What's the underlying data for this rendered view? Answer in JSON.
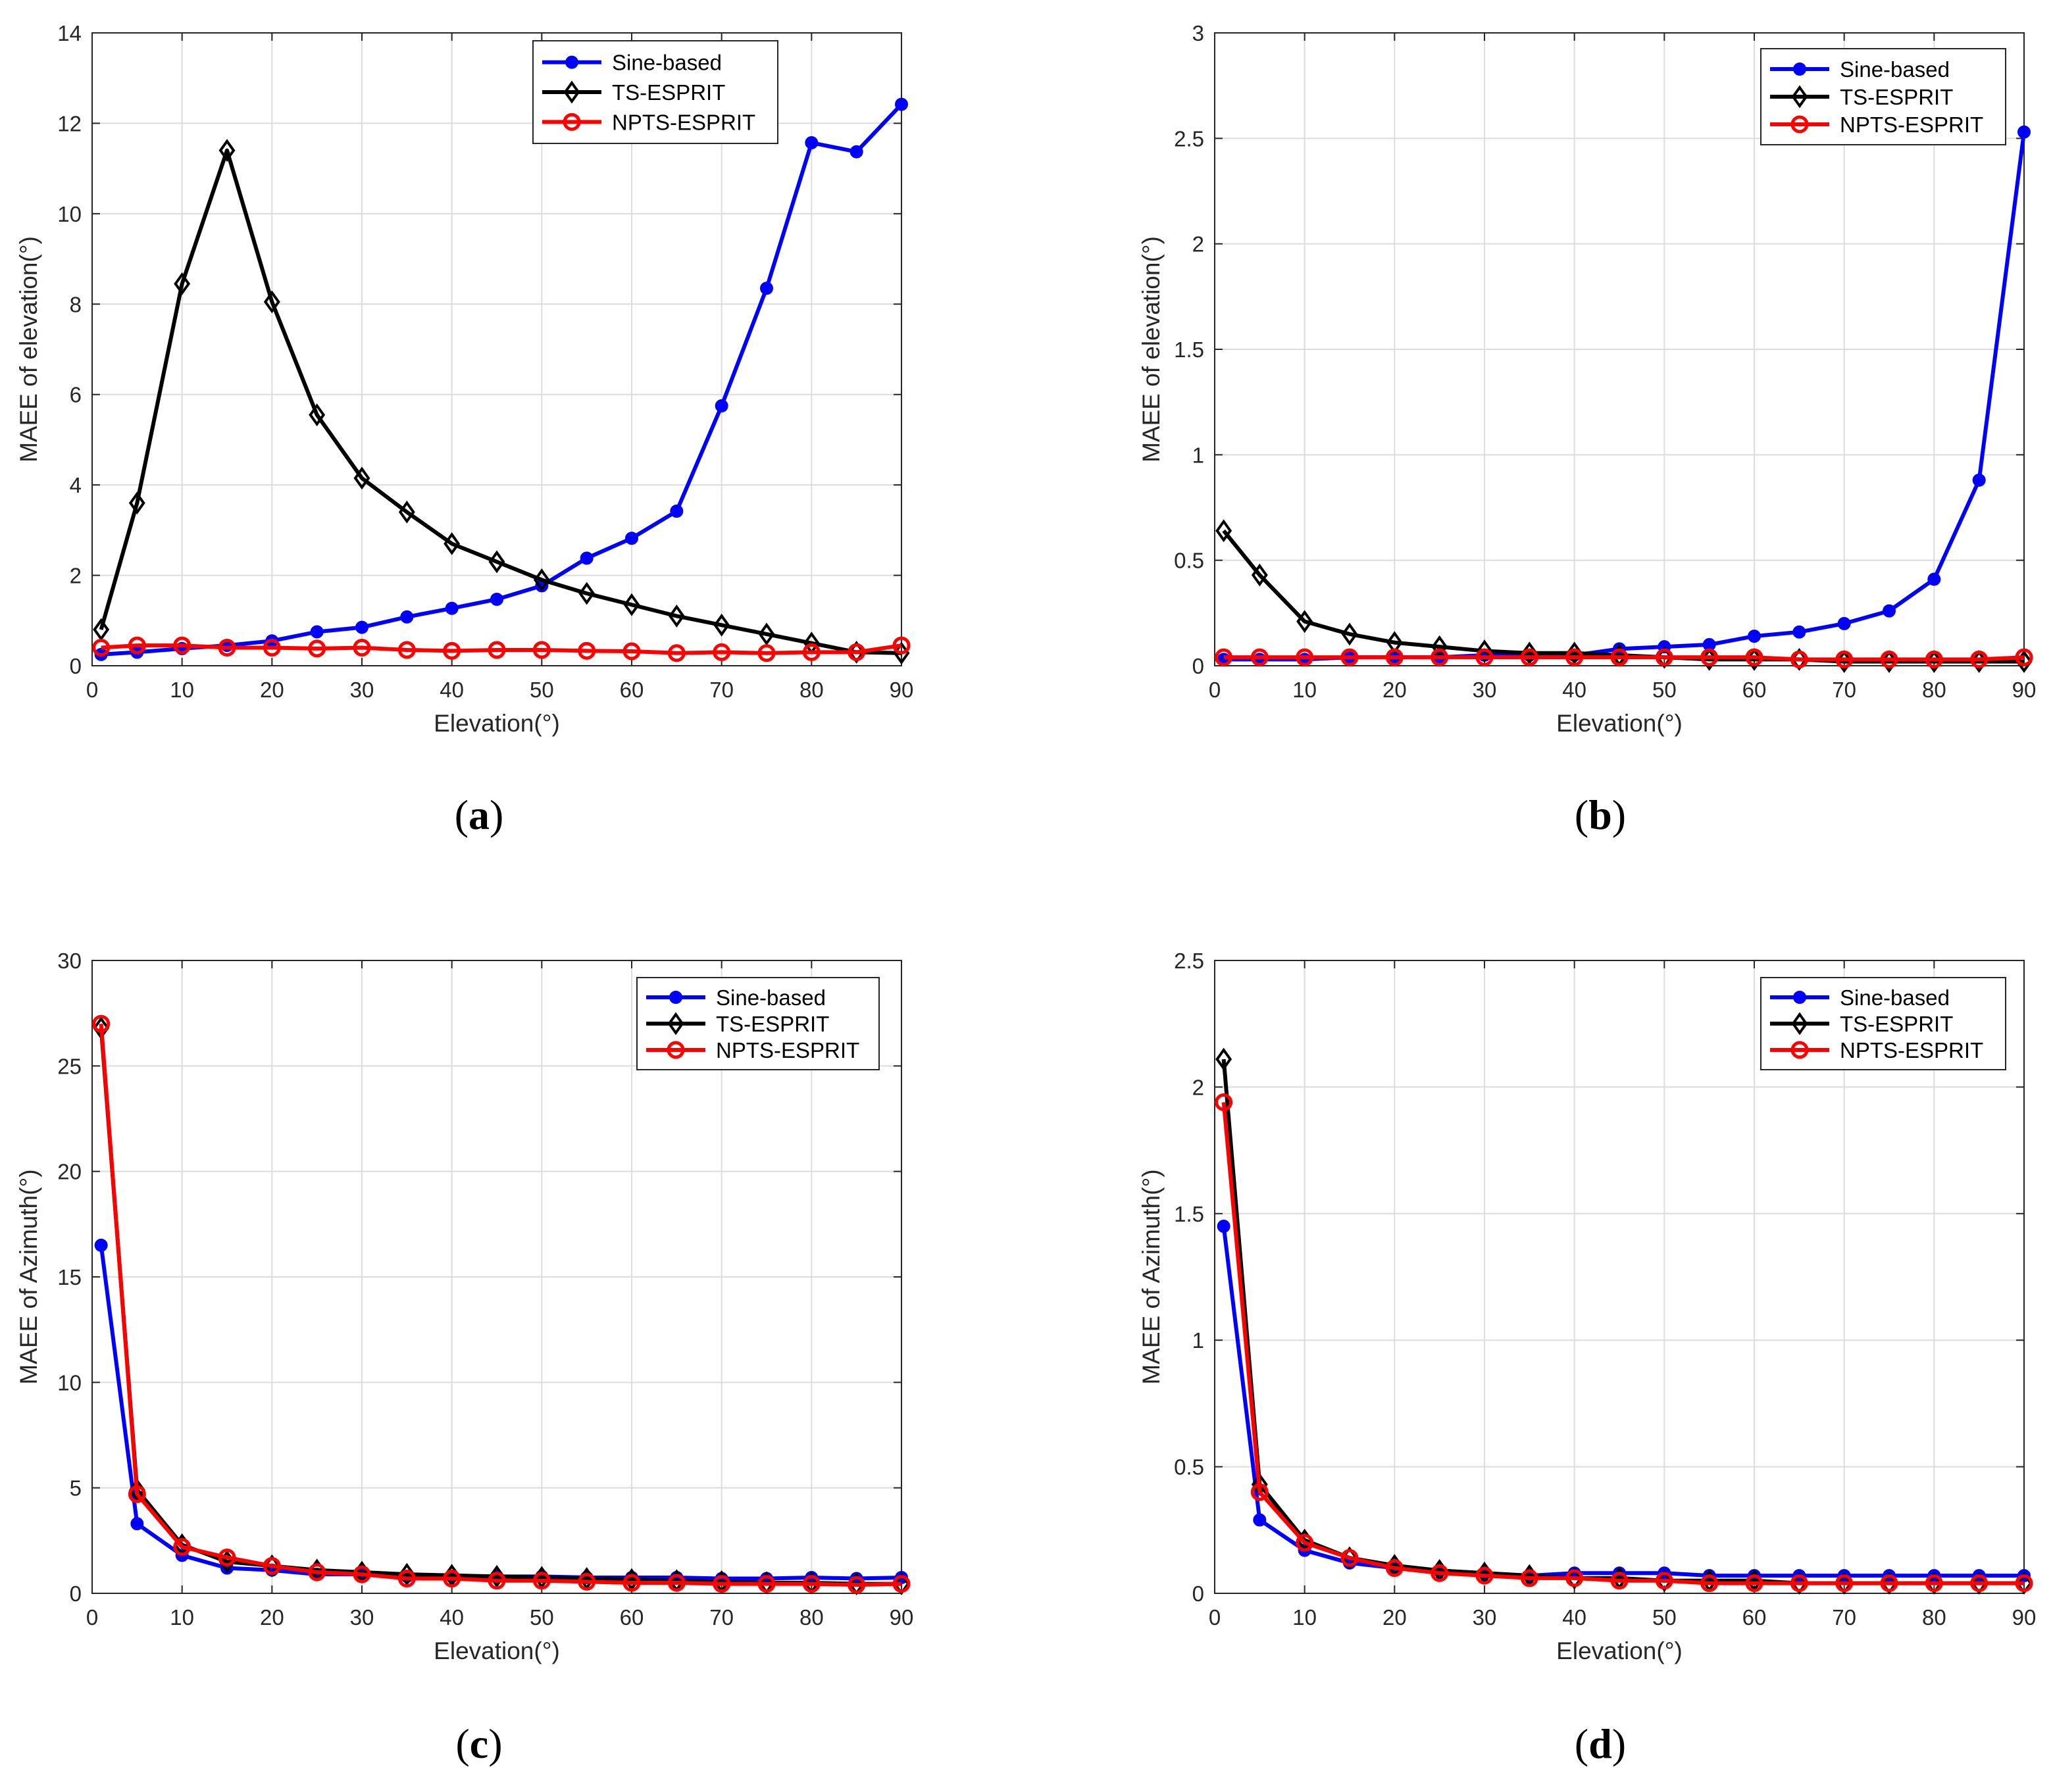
{
  "series_styles": {
    "Sine-based": {
      "color": "#0000ff",
      "marker": "dot"
    },
    "TS-ESPRIT": {
      "color": "#000000",
      "marker": "diamond"
    },
    "NPTS-ESPRIT": {
      "color": "#ff0000",
      "marker": "circle"
    }
  },
  "chart_data": [
    {
      "id": "a",
      "panel_label": "(a)",
      "type": "line",
      "xlabel": "Elevation(°)",
      "ylabel": "MAEE of elevation(°)",
      "xlim": [
        0,
        90
      ],
      "ylim": [
        0,
        14
      ],
      "xticks": [
        0,
        10,
        20,
        30,
        40,
        50,
        60,
        70,
        80,
        90
      ],
      "yticks": [
        0,
        2,
        4,
        6,
        8,
        10,
        12,
        14
      ],
      "grid": true,
      "legend_location": "top-right",
      "x": [
        1,
        5,
        10,
        15,
        20,
        25,
        30,
        35,
        40,
        45,
        50,
        55,
        60,
        65,
        70,
        75,
        80,
        85,
        90
      ],
      "series": [
        {
          "name": "Sine-based",
          "values": [
            0.25,
            0.3,
            0.38,
            0.45,
            0.55,
            0.75,
            0.85,
            1.08,
            1.27,
            1.47,
            1.77,
            2.38,
            2.82,
            3.42,
            5.75,
            8.35,
            11.57,
            11.37,
            12.42
          ]
        },
        {
          "name": "TS-ESPRIT",
          "values": [
            0.8,
            3.6,
            8.45,
            11.4,
            8.05,
            5.55,
            4.15,
            3.4,
            2.7,
            2.3,
            1.9,
            1.6,
            1.35,
            1.1,
            0.9,
            0.7,
            0.5,
            0.3,
            0.28
          ]
        },
        {
          "name": "NPTS-ESPRIT",
          "values": [
            0.4,
            0.45,
            0.45,
            0.4,
            0.4,
            0.38,
            0.4,
            0.35,
            0.33,
            0.35,
            0.35,
            0.33,
            0.32,
            0.28,
            0.3,
            0.28,
            0.3,
            0.3,
            0.45
          ]
        }
      ]
    },
    {
      "id": "b",
      "panel_label": "(b)",
      "type": "line",
      "xlabel": "Elevation(°)",
      "ylabel": "MAEE of elevation(°)",
      "xlim": [
        0,
        90
      ],
      "ylim": [
        0,
        3
      ],
      "xticks": [
        0,
        10,
        20,
        30,
        40,
        50,
        60,
        70,
        80,
        90
      ],
      "yticks": [
        0,
        0.5,
        1,
        1.5,
        2,
        2.5,
        3
      ],
      "grid": true,
      "legend_location": "top-right",
      "x": [
        1,
        5,
        10,
        15,
        20,
        25,
        30,
        35,
        40,
        45,
        50,
        55,
        60,
        65,
        70,
        75,
        80,
        85,
        90
      ],
      "series": [
        {
          "name": "Sine-based",
          "values": [
            0.03,
            0.03,
            0.03,
            0.04,
            0.04,
            0.04,
            0.05,
            0.05,
            0.05,
            0.08,
            0.09,
            0.1,
            0.14,
            0.16,
            0.2,
            0.26,
            0.41,
            0.88,
            2.53
          ]
        },
        {
          "name": "TS-ESPRIT",
          "values": [
            0.64,
            0.43,
            0.21,
            0.15,
            0.11,
            0.09,
            0.07,
            0.06,
            0.06,
            0.05,
            0.04,
            0.03,
            0.03,
            0.03,
            0.02,
            0.02,
            0.02,
            0.02,
            0.02
          ]
        },
        {
          "name": "NPTS-ESPRIT",
          "values": [
            0.04,
            0.04,
            0.04,
            0.04,
            0.04,
            0.04,
            0.04,
            0.04,
            0.04,
            0.04,
            0.04,
            0.04,
            0.04,
            0.03,
            0.03,
            0.03,
            0.03,
            0.03,
            0.04
          ]
        }
      ]
    },
    {
      "id": "c",
      "panel_label": "(c)",
      "type": "line",
      "xlabel": "Elevation(°)",
      "ylabel": "MAEE of Azimuth(°)",
      "xlim": [
        0,
        90
      ],
      "ylim": [
        0,
        30
      ],
      "xticks": [
        0,
        10,
        20,
        30,
        40,
        50,
        60,
        70,
        80,
        90
      ],
      "yticks": [
        0,
        5,
        10,
        15,
        20,
        25,
        30
      ],
      "grid": true,
      "legend_location": "top-right",
      "x": [
        1,
        5,
        10,
        15,
        20,
        25,
        30,
        35,
        40,
        45,
        50,
        55,
        60,
        65,
        70,
        75,
        80,
        85,
        90
      ],
      "series": [
        {
          "name": "Sine-based",
          "values": [
            16.5,
            3.3,
            1.8,
            1.2,
            1.1,
            0.9,
            0.9,
            0.8,
            0.8,
            0.8,
            0.8,
            0.75,
            0.75,
            0.75,
            0.7,
            0.7,
            0.75,
            0.7,
            0.75
          ]
        },
        {
          "name": "TS-ESPRIT",
          "values": [
            26.8,
            4.9,
            2.3,
            1.5,
            1.3,
            1.1,
            1.0,
            0.9,
            0.85,
            0.8,
            0.75,
            0.7,
            0.65,
            0.6,
            0.55,
            0.5,
            0.5,
            0.45,
            0.45
          ]
        },
        {
          "name": "NPTS-ESPRIT",
          "values": [
            27.0,
            4.7,
            2.2,
            1.7,
            1.3,
            1.0,
            0.9,
            0.7,
            0.7,
            0.6,
            0.6,
            0.55,
            0.5,
            0.5,
            0.45,
            0.45,
            0.45,
            0.4,
            0.45
          ]
        }
      ]
    },
    {
      "id": "d",
      "panel_label": "(d)",
      "type": "line",
      "xlabel": "Elevation(°)",
      "ylabel": "MAEE of Azimuth(°)",
      "xlim": [
        0,
        90
      ],
      "ylim": [
        0,
        2.5
      ],
      "xticks": [
        0,
        10,
        20,
        30,
        40,
        50,
        60,
        70,
        80,
        90
      ],
      "yticks": [
        0,
        0.5,
        1,
        1.5,
        2,
        2.5
      ],
      "grid": true,
      "legend_location": "top-right",
      "x": [
        1,
        5,
        10,
        15,
        20,
        25,
        30,
        35,
        40,
        45,
        50,
        55,
        60,
        65,
        70,
        75,
        80,
        85,
        90
      ],
      "series": [
        {
          "name": "Sine-based",
          "values": [
            1.45,
            0.29,
            0.17,
            0.12,
            0.1,
            0.09,
            0.08,
            0.07,
            0.08,
            0.08,
            0.08,
            0.07,
            0.07,
            0.07,
            0.07,
            0.07,
            0.07,
            0.07,
            0.07
          ]
        },
        {
          "name": "TS-ESPRIT",
          "values": [
            2.11,
            0.43,
            0.21,
            0.14,
            0.11,
            0.09,
            0.08,
            0.07,
            0.06,
            0.06,
            0.05,
            0.05,
            0.05,
            0.04,
            0.04,
            0.04,
            0.04,
            0.04,
            0.04
          ]
        },
        {
          "name": "NPTS-ESPRIT",
          "values": [
            1.94,
            0.4,
            0.2,
            0.14,
            0.1,
            0.08,
            0.07,
            0.06,
            0.06,
            0.05,
            0.05,
            0.04,
            0.04,
            0.04,
            0.04,
            0.04,
            0.04,
            0.04,
            0.04
          ]
        }
      ]
    }
  ]
}
